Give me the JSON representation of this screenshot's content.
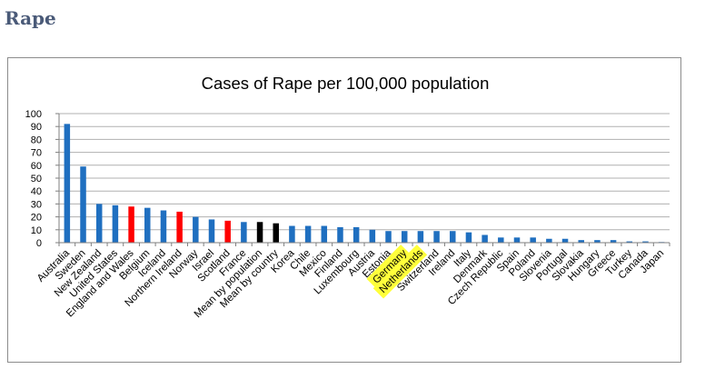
{
  "page": {
    "heading": "Rape"
  },
  "colors": {
    "default": "#1f6fc0",
    "red": "#ff0000",
    "black": "#000000",
    "highlight": "#ffff3b",
    "grid": "#b0b0b0",
    "axis": "#7f7f7f"
  },
  "chart_data": {
    "type": "bar",
    "title": "Cases of Rape per 100,000 population",
    "xlabel": "",
    "ylabel": "",
    "ylim": [
      0,
      100
    ],
    "yticks": [
      0,
      10,
      20,
      30,
      40,
      50,
      60,
      70,
      80,
      90,
      100
    ],
    "grid": true,
    "categories": [
      "Australia",
      "Sweden",
      "New Zealand",
      "United States",
      "England and Wales",
      "Belgium",
      "Iceland",
      "Northern Ireland",
      "Norway",
      "Israel",
      "Scotland",
      "France",
      "Mean by population",
      "Mean by country",
      "Korea",
      "Chile",
      "Mexico",
      "Finland",
      "Luxembourg",
      "Austria",
      "Estonia",
      "Germany",
      "Netherlands",
      "Switzerland",
      "Ireland",
      "Italy",
      "Denmark",
      "Czech Republic",
      "Spain",
      "Poland",
      "Slovenia",
      "Portugal",
      "Slovakia",
      "Hungary",
      "Greece",
      "Turkey",
      "Canada",
      "Japan"
    ],
    "values": [
      92,
      59,
      30,
      29,
      28,
      27,
      25,
      24,
      20,
      18,
      17,
      16,
      16,
      15,
      13,
      13,
      13,
      12,
      12,
      10,
      9,
      9,
      9,
      9,
      9,
      8,
      6,
      4,
      4,
      4,
      3,
      3,
      2,
      2,
      2,
      1,
      1,
      0.5
    ],
    "bar_colors": [
      "default",
      "default",
      "default",
      "default",
      "red",
      "default",
      "default",
      "red",
      "default",
      "default",
      "red",
      "default",
      "black",
      "black",
      "default",
      "default",
      "default",
      "default",
      "default",
      "default",
      "default",
      "default",
      "default",
      "default",
      "default",
      "default",
      "default",
      "default",
      "default",
      "default",
      "default",
      "default",
      "default",
      "default",
      "default",
      "default",
      "default",
      "default"
    ],
    "highlighted_labels": [
      "Germany",
      "Netherlands"
    ]
  }
}
